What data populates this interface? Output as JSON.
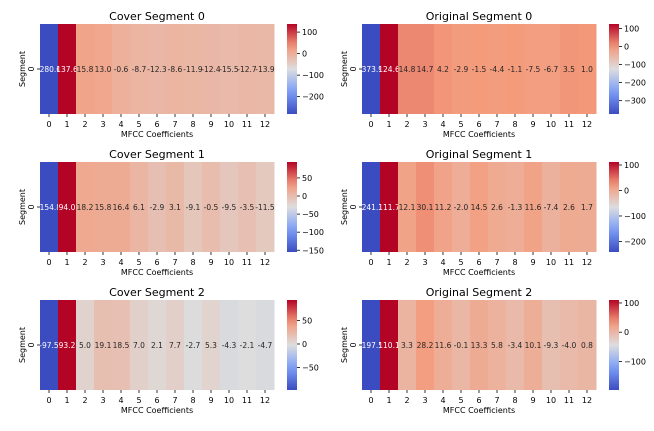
{
  "figure": {
    "colormap": "coolwarm",
    "low_color": "#3b4cc0",
    "mid_color": "#dddddd",
    "high_color": "#b40426"
  },
  "chart_data": [
    {
      "type": "heatmap",
      "title": "Cover Segment 0",
      "xlabel": "MFCC Coefficients",
      "ylabel": "Segment",
      "x_ticks": [
        "0",
        "1",
        "2",
        "3",
        "4",
        "5",
        "6",
        "7",
        "8",
        "9",
        "10",
        "11",
        "12"
      ],
      "y_ticks": [
        "0"
      ],
      "values": [
        -280.6,
        137.6,
        15.8,
        13.0,
        -0.6,
        -8.7,
        -12.3,
        -8.6,
        -11.9,
        -12.4,
        -15.5,
        -12.7,
        -13.9
      ],
      "labels": [
        "-280.6",
        "137.6",
        "15.8",
        "13.0",
        "-0.6",
        "-8.7",
        "-12.3",
        "-8.6",
        "-11.9",
        "-12.4",
        "-15.5",
        "-12.7",
        "-13.9"
      ],
      "colorbar_ticks": [
        "100",
        "0",
        "−100",
        "−200"
      ],
      "colorbar_tick_values": [
        100,
        0,
        -100,
        -200
      ],
      "vmin": -280.6,
      "vmax": 137.6
    },
    {
      "type": "heatmap",
      "title": "Original Segment 0",
      "xlabel": "MFCC Coefficients",
      "ylabel": "Segment",
      "x_ticks": [
        "0",
        "1",
        "2",
        "3",
        "4",
        "5",
        "6",
        "7",
        "8",
        "9",
        "10",
        "11",
        "12"
      ],
      "y_ticks": [
        "0"
      ],
      "values": [
        -373.9,
        124.6,
        14.8,
        14.7,
        4.2,
        -2.9,
        -1.5,
        -4.4,
        -1.1,
        -7.5,
        -6.7,
        3.5,
        1.0
      ],
      "labels": [
        "-373.9",
        "124.6",
        "14.8",
        "14.7",
        "4.2",
        "-2.9",
        "-1.5",
        "-4.4",
        "-1.1",
        "-7.5",
        "-6.7",
        "3.5",
        "1.0"
      ],
      "colorbar_ticks": [
        "100",
        "0",
        "−100",
        "−200",
        "−300"
      ],
      "colorbar_tick_values": [
        100,
        0,
        -100,
        -200,
        -300
      ],
      "vmin": -373.9,
      "vmax": 124.6
    },
    {
      "type": "heatmap",
      "title": "Cover Segment 1",
      "xlabel": "MFCC Coefficients",
      "ylabel": "Segment",
      "x_ticks": [
        "0",
        "1",
        "2",
        "3",
        "4",
        "5",
        "6",
        "7",
        "8",
        "9",
        "10",
        "11",
        "12"
      ],
      "y_ticks": [
        "0"
      ],
      "values": [
        -154.8,
        94.0,
        18.2,
        15.8,
        16.4,
        6.1,
        -2.9,
        3.1,
        -9.1,
        -0.5,
        -9.5,
        -3.5,
        -11.5
      ],
      "labels": [
        "-154.8",
        "94.0",
        "18.2",
        "15.8",
        "16.4",
        "6.1",
        "-2.9",
        "3.1",
        "-9.1",
        "-0.5",
        "-9.5",
        "-3.5",
        "-11.5"
      ],
      "colorbar_ticks": [
        "50",
        "0",
        "−50",
        "−100",
        "−150"
      ],
      "colorbar_tick_values": [
        50,
        0,
        -50,
        -100,
        -150
      ],
      "vmin": -154.8,
      "vmax": 94.0
    },
    {
      "type": "heatmap",
      "title": "Original Segment 1",
      "xlabel": "MFCC Coefficients",
      "ylabel": "Segment",
      "x_ticks": [
        "0",
        "1",
        "2",
        "3",
        "4",
        "5",
        "6",
        "7",
        "8",
        "9",
        "10",
        "11",
        "12"
      ],
      "y_ticks": [
        "0"
      ],
      "values": [
        -241.3,
        111.7,
        12.1,
        30.1,
        11.2,
        -2.0,
        14.5,
        2.6,
        -1.3,
        11.6,
        -7.4,
        2.6,
        1.7
      ],
      "labels": [
        "-241.3",
        "111.7",
        "12.1",
        "30.1",
        "11.2",
        "-2.0",
        "14.5",
        "2.6",
        "-1.3",
        "11.6",
        "-7.4",
        "2.6",
        "1.7"
      ],
      "colorbar_ticks": [
        "100",
        "0",
        "−100",
        "−200"
      ],
      "colorbar_tick_values": [
        100,
        0,
        -100,
        -200
      ],
      "vmin": -241.3,
      "vmax": 111.7
    },
    {
      "type": "heatmap",
      "title": "Cover Segment 2",
      "xlabel": "MFCC Coefficients",
      "ylabel": "Segment",
      "x_ticks": [
        "0",
        "1",
        "2",
        "3",
        "4",
        "5",
        "6",
        "7",
        "8",
        "9",
        "10",
        "11",
        "12"
      ],
      "y_ticks": [
        "0"
      ],
      "values": [
        -97.5,
        93.2,
        5.0,
        19.1,
        18.5,
        7.0,
        2.1,
        7.7,
        -2.7,
        5.3,
        -4.3,
        -2.1,
        -4.7
      ],
      "labels": [
        "-97.5",
        "93.2",
        "5.0",
        "19.1",
        "18.5",
        "7.0",
        "2.1",
        "7.7",
        "-2.7",
        "5.3",
        "-4.3",
        "-2.1",
        "-4.7"
      ],
      "colorbar_ticks": [
        "50",
        "0",
        "−50"
      ],
      "colorbar_tick_values": [
        50,
        0,
        -50
      ],
      "vmin": -97.5,
      "vmax": 93.2
    },
    {
      "type": "heatmap",
      "title": "Original Segment 2",
      "xlabel": "MFCC Coefficients",
      "ylabel": "Segment",
      "x_ticks": [
        "0",
        "1",
        "2",
        "3",
        "4",
        "5",
        "6",
        "7",
        "8",
        "9",
        "10",
        "11",
        "12"
      ],
      "y_ticks": [
        "0"
      ],
      "values": [
        -197.5,
        110.1,
        3.3,
        28.2,
        11.6,
        -0.1,
        13.3,
        5.8,
        -3.4,
        10.1,
        -9.3,
        -4.0,
        0.8
      ],
      "labels": [
        "-197.5",
        "110.1",
        "3.3",
        "28.2",
        "11.6",
        "-0.1",
        "13.3",
        "5.8",
        "-3.4",
        "10.1",
        "-9.3",
        "-4.0",
        "0.8"
      ],
      "colorbar_ticks": [
        "100",
        "0",
        "−100"
      ],
      "colorbar_tick_values": [
        100,
        0,
        -100
      ],
      "vmin": -197.5,
      "vmax": 110.1
    }
  ]
}
